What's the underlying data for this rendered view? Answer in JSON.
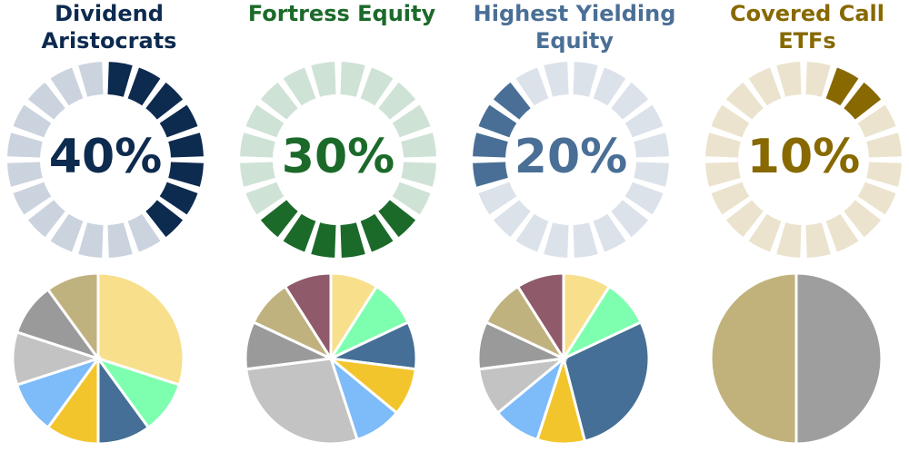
{
  "chart_data": [
    {
      "type": "pie",
      "title": "Dividend Aristocrats",
      "title_lines": [
        "Dividend",
        "Aristocrats"
      ],
      "percentage_label": "40%",
      "allocation": 0.4,
      "color_filled": "#0d2a4f",
      "color_empty": "#cbd3de",
      "pie_values": [
        30,
        10,
        10,
        10,
        10,
        10,
        10,
        10
      ],
      "pie_colors": [
        "#f8df8b",
        "#7effb0",
        "#456f96",
        "#f3c52d",
        "#7dbbf9",
        "#c3c3c3",
        "#9a9a9a",
        "#c0b27f",
        "#8f5a6a"
      ]
    },
    {
      "type": "pie",
      "title": "Fortress Equity",
      "title_lines": [
        "Fortress Equity"
      ],
      "percentage_label": "30%",
      "allocation": 0.3,
      "color_filled": "#1b6a2a",
      "color_empty": "#cfe2d6",
      "pie_values": [
        9,
        9,
        9,
        9,
        9,
        28,
        9,
        9,
        9
      ],
      "pie_colors": [
        "#f8df8b",
        "#7effb0",
        "#456f96",
        "#f3c52d",
        "#7dbbf9",
        "#c3c3c3",
        "#9a9a9a",
        "#c0b27f",
        "#8f5a6a"
      ]
    },
    {
      "type": "pie",
      "title": "Highest Yielding Equity",
      "title_lines": [
        "Highest Yielding",
        "Equity"
      ],
      "percentage_label": "20%",
      "allocation": 0.2,
      "color_filled": "#4a6f96",
      "color_empty": "#dce2ea",
      "pie_values": [
        9,
        9,
        28,
        9,
        9,
        9,
        9,
        9,
        9
      ],
      "pie_colors": [
        "#f8df8b",
        "#7effb0",
        "#456f96",
        "#f3c52d",
        "#7dbbf9",
        "#c3c3c3",
        "#9a9a9a",
        "#c0b27f",
        "#8f5a6a"
      ]
    },
    {
      "type": "pie",
      "title": "Covered Call ETFs",
      "title_lines": [
        "Covered Call ETFs"
      ],
      "percentage_label": "10%",
      "allocation": 0.1,
      "color_filled": "#876900",
      "color_empty": "#ebe3cd",
      "pie_values": [
        50,
        50
      ],
      "pie_colors": [
        "#9e9e9e",
        "#c1b27c"
      ]
    }
  ]
}
